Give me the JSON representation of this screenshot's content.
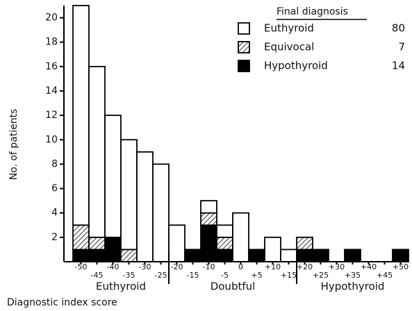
{
  "chart_data": {
    "type": "stacked-histogram",
    "x_label": "Diagnostic index score",
    "y_label": "No. of patients",
    "legend_title": "Final diagnosis",
    "categories": [
      "-50",
      "-45",
      "-40",
      "-35",
      "-30",
      "-25",
      "-20",
      "-15",
      "-10",
      "-5",
      "0",
      "+5",
      "+10",
      "+15",
      "+20",
      "+25",
      "+30",
      "+35",
      "+40",
      "+45",
      "+50"
    ],
    "regions": [
      {
        "label": "Euthyroid",
        "from": 0,
        "to": 5
      },
      {
        "label": "Doubtful",
        "from": 6,
        "to": 13
      },
      {
        "label": "Hypothyroid",
        "from": 14,
        "to": 20
      }
    ],
    "series": [
      {
        "name": "Hypothyroid",
        "count": 14,
        "color": "#000000",
        "values": [
          1,
          1,
          2,
          0,
          0,
          0,
          0,
          1,
          3,
          1,
          0,
          1,
          0,
          0,
          1,
          1,
          0,
          1,
          0,
          0,
          1
        ]
      },
      {
        "name": "Equivocal",
        "count": 7,
        "color": "#000000",
        "pattern": "hatch",
        "values": [
          2,
          1,
          0,
          1,
          0,
          0,
          0,
          0,
          1,
          1,
          0,
          0,
          0,
          0,
          1,
          0,
          0,
          0,
          0,
          0,
          0
        ]
      },
      {
        "name": "Euthyroid",
        "count": 80,
        "color": "#ffffff",
        "values": [
          18,
          14,
          10,
          9,
          9,
          8,
          3,
          0,
          1,
          1,
          4,
          0,
          2,
          1,
          0,
          0,
          0,
          0,
          0,
          0,
          0
        ]
      }
    ],
    "legend_order": [
      2,
      1,
      0
    ],
    "ylim": [
      0,
      21
    ],
    "yticks": [
      2,
      4,
      6,
      8,
      10,
      12,
      14,
      16,
      18,
      20
    ]
  }
}
